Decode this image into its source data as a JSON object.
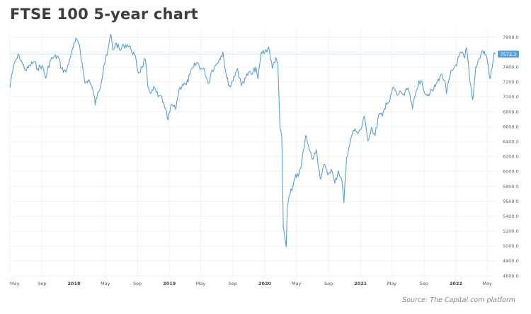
{
  "title": "FTSE 100 5-year chart",
  "source": "Source: The Capital.com platform",
  "chart_data": {
    "type": "line",
    "title": "FTSE 100 5-year chart",
    "series": [
      {
        "color": "#5a9fd8",
        "points": [
          [
            "2017-05-01",
            7120
          ],
          [
            "2017-05-08",
            7300
          ],
          [
            "2017-05-22",
            7480
          ],
          [
            "2017-06-05",
            7560
          ],
          [
            "2017-06-19",
            7430
          ],
          [
            "2017-07-03",
            7350
          ],
          [
            "2017-07-17",
            7420
          ],
          [
            "2017-08-01",
            7470
          ],
          [
            "2017-08-15",
            7380
          ],
          [
            "2017-09-01",
            7420
          ],
          [
            "2017-09-15",
            7250
          ],
          [
            "2017-10-01",
            7480
          ],
          [
            "2017-10-15",
            7530
          ],
          [
            "2017-11-01",
            7540
          ],
          [
            "2017-11-15",
            7380
          ],
          [
            "2017-12-01",
            7330
          ],
          [
            "2017-12-15",
            7500
          ],
          [
            "2018-01-05",
            7730
          ],
          [
            "2018-01-12",
            7770
          ],
          [
            "2018-01-22",
            7700
          ],
          [
            "2018-02-05",
            7350
          ],
          [
            "2018-02-12",
            7180
          ],
          [
            "2018-02-26",
            7230
          ],
          [
            "2018-03-08",
            7150
          ],
          [
            "2018-03-20",
            7010
          ],
          [
            "2018-03-23",
            6890
          ],
          [
            "2018-04-02",
            7060
          ],
          [
            "2018-04-16",
            7200
          ],
          [
            "2018-04-25",
            7420
          ],
          [
            "2018-05-08",
            7560
          ],
          [
            "2018-05-22",
            7840
          ],
          [
            "2018-05-30",
            7630
          ],
          [
            "2018-06-12",
            7720
          ],
          [
            "2018-06-26",
            7620
          ],
          [
            "2018-07-10",
            7690
          ],
          [
            "2018-07-24",
            7700
          ],
          [
            "2018-08-07",
            7640
          ],
          [
            "2018-08-21",
            7560
          ],
          [
            "2018-09-05",
            7320
          ],
          [
            "2018-09-19",
            7400
          ],
          [
            "2018-10-01",
            7500
          ],
          [
            "2018-10-10",
            7150
          ],
          [
            "2018-10-24",
            7050
          ],
          [
            "2018-11-05",
            7120
          ],
          [
            "2018-11-19",
            7000
          ],
          [
            "2018-12-03",
            7000
          ],
          [
            "2018-12-14",
            6850
          ],
          [
            "2018-12-27",
            6690
          ],
          [
            "2019-01-10",
            6900
          ],
          [
            "2019-01-24",
            6830
          ],
          [
            "2019-02-07",
            7100
          ],
          [
            "2019-02-21",
            7170
          ],
          [
            "2019-03-07",
            7160
          ],
          [
            "2019-03-21",
            7300
          ],
          [
            "2019-04-04",
            7400
          ],
          [
            "2019-04-18",
            7460
          ],
          [
            "2019-05-02",
            7380
          ],
          [
            "2019-05-16",
            7350
          ],
          [
            "2019-05-30",
            7180
          ],
          [
            "2019-06-13",
            7360
          ],
          [
            "2019-06-27",
            7420
          ],
          [
            "2019-07-11",
            7510
          ],
          [
            "2019-07-25",
            7600
          ],
          [
            "2019-08-08",
            7250
          ],
          [
            "2019-08-22",
            7130
          ],
          [
            "2019-09-05",
            7270
          ],
          [
            "2019-09-19",
            7380
          ],
          [
            "2019-10-03",
            7150
          ],
          [
            "2019-10-17",
            7250
          ],
          [
            "2019-10-31",
            7320
          ],
          [
            "2019-11-14",
            7300
          ],
          [
            "2019-11-28",
            7400
          ],
          [
            "2019-12-06",
            7240
          ],
          [
            "2019-12-19",
            7600
          ],
          [
            "2020-01-02",
            7600
          ],
          [
            "2020-01-16",
            7670
          ],
          [
            "2020-01-30",
            7380
          ],
          [
            "2020-02-12",
            7530
          ],
          [
            "2020-02-20",
            7440
          ],
          [
            "2020-02-28",
            6580
          ],
          [
            "2020-03-06",
            6460
          ],
          [
            "2020-03-12",
            5240
          ],
          [
            "2020-03-16",
            5150
          ],
          [
            "2020-03-23",
            4990
          ],
          [
            "2020-03-27",
            5510
          ],
          [
            "2020-04-07",
            5700
          ],
          [
            "2020-04-17",
            5790
          ],
          [
            "2020-04-28",
            5960
          ],
          [
            "2020-05-08",
            5930
          ],
          [
            "2020-05-20",
            6070
          ],
          [
            "2020-06-05",
            6480
          ],
          [
            "2020-06-19",
            6290
          ],
          [
            "2020-07-03",
            6160
          ],
          [
            "2020-07-17",
            6290
          ],
          [
            "2020-07-31",
            5900
          ],
          [
            "2020-08-14",
            6090
          ],
          [
            "2020-08-28",
            5960
          ],
          [
            "2020-09-11",
            6030
          ],
          [
            "2020-09-25",
            5840
          ],
          [
            "2020-10-09",
            6010
          ],
          [
            "2020-10-23",
            5860
          ],
          [
            "2020-10-30",
            5580
          ],
          [
            "2020-11-09",
            6190
          ],
          [
            "2020-11-20",
            6350
          ],
          [
            "2020-12-04",
            6550
          ],
          [
            "2020-12-18",
            6530
          ],
          [
            "2021-01-04",
            6570
          ],
          [
            "2021-01-15",
            6740
          ],
          [
            "2021-01-29",
            6410
          ],
          [
            "2021-02-12",
            6590
          ],
          [
            "2021-02-26",
            6480
          ],
          [
            "2021-03-12",
            6760
          ],
          [
            "2021-03-26",
            6740
          ],
          [
            "2021-04-09",
            6920
          ],
          [
            "2021-04-23",
            6940
          ],
          [
            "2021-05-07",
            7130
          ],
          [
            "2021-05-21",
            7020
          ],
          [
            "2021-06-04",
            7070
          ],
          [
            "2021-06-18",
            7020
          ],
          [
            "2021-07-02",
            7120
          ],
          [
            "2021-07-19",
            6840
          ],
          [
            "2021-07-30",
            7030
          ],
          [
            "2021-08-13",
            7220
          ],
          [
            "2021-08-27",
            7150
          ],
          [
            "2021-09-10",
            7030
          ],
          [
            "2021-09-24",
            7050
          ],
          [
            "2021-10-08",
            7100
          ],
          [
            "2021-10-22",
            7200
          ],
          [
            "2021-11-05",
            7300
          ],
          [
            "2021-11-19",
            7220
          ],
          [
            "2021-11-26",
            7040
          ],
          [
            "2021-12-10",
            7290
          ],
          [
            "2021-12-24",
            7380
          ],
          [
            "2022-01-07",
            7480
          ],
          [
            "2022-01-21",
            7590
          ],
          [
            "2022-02-04",
            7520
          ],
          [
            "2022-02-11",
            7660
          ],
          [
            "2022-02-24",
            7200
          ],
          [
            "2022-03-07",
            6960
          ],
          [
            "2022-03-18",
            7400
          ],
          [
            "2022-03-31",
            7510
          ],
          [
            "2022-04-14",
            7620
          ],
          [
            "2022-04-29",
            7540
          ],
          [
            "2022-05-06",
            7380
          ],
          [
            "2022-05-12",
            7240
          ],
          [
            "2022-05-20",
            7390
          ],
          [
            "2022-05-27",
            7590
          ],
          [
            "2022-06-01",
            7572.3
          ]
        ]
      }
    ],
    "last_value": "7572.3",
    "xlim": [
      "2017-05-01",
      "2022-06-02"
    ],
    "ylim": [
      4600,
      7900
    ],
    "yticks": [
      "7800.0",
      "7600.0",
      "7400.0",
      "7200.0",
      "7000.0",
      "6800.0",
      "6600.0",
      "6400.0",
      "6200.0",
      "6000.0",
      "5800.0",
      "5600.0",
      "5400.0",
      "5200.0",
      "5000.0",
      "4800.0",
      "4600.0"
    ],
    "xticks": [
      {
        "label": "May",
        "date": "2017-05-01",
        "year": false
      },
      {
        "label": "Sep",
        "date": "2017-09-01",
        "year": false
      },
      {
        "label": "2018",
        "date": "2018-01-01",
        "year": true
      },
      {
        "label": "May",
        "date": "2018-05-01",
        "year": false
      },
      {
        "label": "Sep",
        "date": "2018-09-01",
        "year": false
      },
      {
        "label": "2019",
        "date": "2019-01-01",
        "year": true
      },
      {
        "label": "May",
        "date": "2019-05-01",
        "year": false
      },
      {
        "label": "Sep",
        "date": "2019-09-01",
        "year": false
      },
      {
        "label": "2020",
        "date": "2020-01-01",
        "year": true
      },
      {
        "label": "May",
        "date": "2020-05-01",
        "year": false
      },
      {
        "label": "Sep",
        "date": "2020-09-01",
        "year": false
      },
      {
        "label": "2021",
        "date": "2021-01-01",
        "year": true
      },
      {
        "label": "May",
        "date": "2021-05-01",
        "year": false
      },
      {
        "label": "Sep",
        "date": "2021-09-01",
        "year": false
      },
      {
        "label": "2022",
        "date": "2022-01-01",
        "year": true
      },
      {
        "label": "May",
        "date": "2022-05-01",
        "year": false
      }
    ],
    "grid": true,
    "colors": {
      "line": "#5a9fd8",
      "grid": "#f1f1f1",
      "badge": "#5a9fd8",
      "badge_text": "#ffffff"
    }
  }
}
